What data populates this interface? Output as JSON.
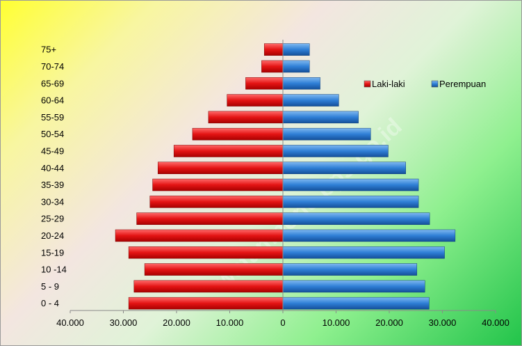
{
  "chart_data": {
    "type": "bar",
    "orientation": "horizontal",
    "categories": [
      "0 - 4",
      "5 - 9",
      "10 -14",
      "15-19",
      "20-24",
      "25-29",
      "30-34",
      "35-39",
      "40-44",
      "45-49",
      "50-54",
      "55-59",
      "60-64",
      "65-69",
      "70-74",
      "75+"
    ],
    "series": [
      {
        "name": "Laki-laki",
        "color": "#ee1111",
        "values": [
          29000,
          28000,
          26000,
          29000,
          31500,
          27500,
          25000,
          24500,
          23500,
          20500,
          17000,
          14000,
          10500,
          7000,
          4000,
          3500
        ]
      },
      {
        "name": "Perempuan",
        "color": "#2f7fd6",
        "values": [
          27500,
          26700,
          25200,
          30400,
          32400,
          27600,
          25500,
          25500,
          23100,
          19800,
          16500,
          14200,
          10500,
          7000,
          5000,
          5000
        ]
      }
    ],
    "xlim": [
      -40000,
      40000
    ],
    "x_ticks": [
      {
        "value": -40000,
        "label": "40.000"
      },
      {
        "value": -30000,
        "label": "30.000"
      },
      {
        "value": -20000,
        "label": "20.000"
      },
      {
        "value": -10000,
        "label": "10.000"
      },
      {
        "value": 0,
        "label": "0"
      },
      {
        "value": 10000,
        "label": "10.000"
      },
      {
        "value": 20000,
        "label": "20.000"
      },
      {
        "value": 30000,
        "label": "30.000"
      },
      {
        "value": 40000,
        "label": "40.000"
      }
    ],
    "legend_position": "right",
    "grid": false,
    "watermark": "watampone.bps.go.id"
  }
}
